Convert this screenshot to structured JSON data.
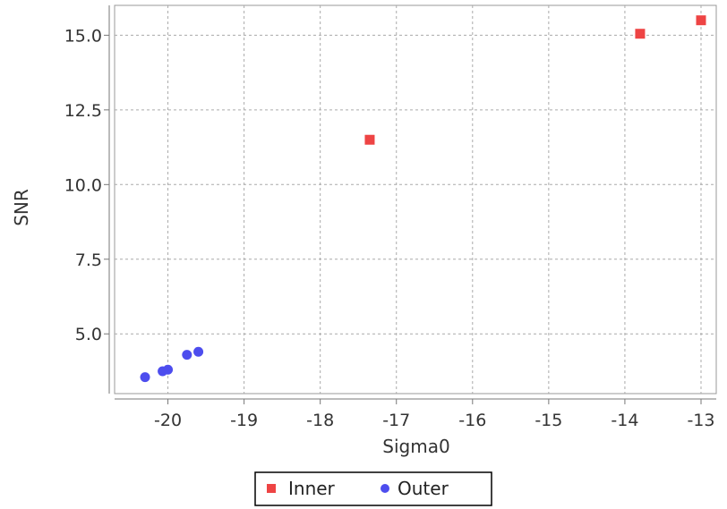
{
  "chart_data": {
    "type": "scatter",
    "xlabel": "Sigma0",
    "ylabel": "SNR",
    "xlim": [
      -20.7,
      -12.8
    ],
    "ylim": [
      3.0,
      16.0
    ],
    "xticks": [
      -20,
      -19,
      -18,
      -17,
      -16,
      -15,
      -14,
      -13
    ],
    "yticks": [
      5.0,
      7.5,
      10.0,
      12.5,
      15.0
    ],
    "xtick_labels": [
      "-20",
      "-19",
      "-18",
      "-17",
      "-16",
      "-15",
      "-14",
      "-13"
    ],
    "ytick_labels": [
      "5.0",
      "7.5",
      "10.0",
      "12.5",
      "15.0"
    ],
    "grid": true,
    "legend_position": "bottom-center",
    "series": [
      {
        "name": "Inner",
        "marker": "square",
        "color": "#ee4444",
        "points": [
          [
            -17.35,
            11.5
          ],
          [
            -13.8,
            15.05
          ],
          [
            -13.0,
            15.5
          ]
        ]
      },
      {
        "name": "Outer",
        "marker": "circle",
        "color": "#4d4dee",
        "points": [
          [
            -20.3,
            3.55
          ],
          [
            -20.07,
            3.75
          ],
          [
            -20.0,
            3.8
          ],
          [
            -19.75,
            4.3
          ],
          [
            -19.6,
            4.4
          ]
        ]
      }
    ]
  }
}
